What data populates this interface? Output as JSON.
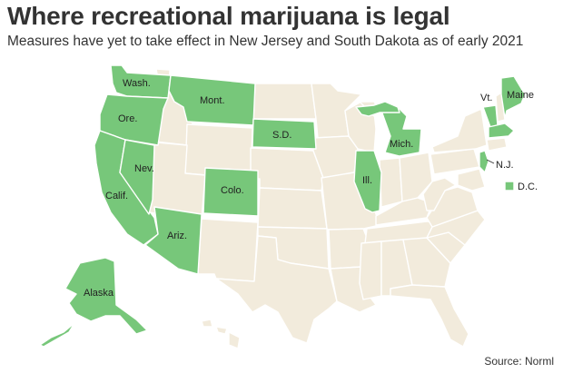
{
  "title": "Where recreational marijuana is legal",
  "subtitle": "Measures have yet to take effect in New Jersey and South Dakota as of early 2021",
  "source": "Source: Norml",
  "colors": {
    "legal": "#77c77a",
    "not_legal": "#f2ebdc",
    "border": "#ffffff",
    "legal_outline": "#5aa95d"
  },
  "legal_states": [
    "Wash.",
    "Ore.",
    "Calif.",
    "Nev.",
    "Ariz.",
    "Mont.",
    "Colo.",
    "S.D.",
    "Ill.",
    "Mich.",
    "Vt.",
    "Maine",
    "Mass.",
    "N.J.",
    "D.C.",
    "Alaska"
  ],
  "labels": {
    "wash": "Wash.",
    "ore": "Ore.",
    "calif": "Calif.",
    "nev": "Nev.",
    "ariz": "Ariz.",
    "mont": "Mont.",
    "colo": "Colo.",
    "sd": "S.D.",
    "ill": "Ill.",
    "mich": "Mich.",
    "vt": "Vt.",
    "maine": "Maine",
    "nj": "N.J.",
    "dc": "D.C.",
    "alaska": "Alaska"
  }
}
